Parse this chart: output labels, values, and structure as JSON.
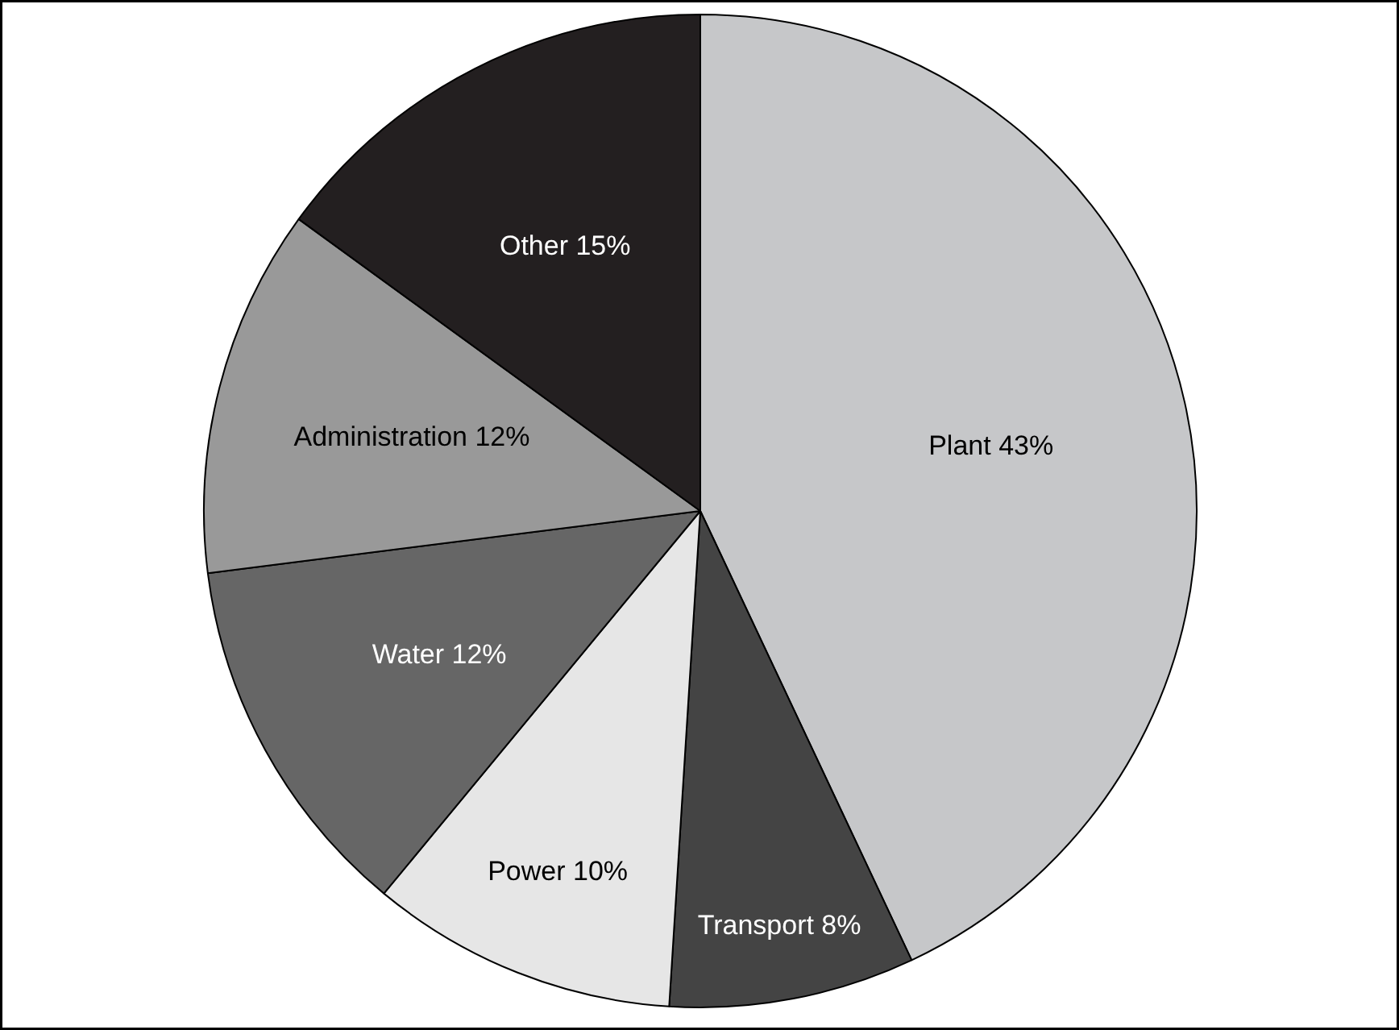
{
  "chart_data": {
    "type": "pie",
    "categories": [
      "Plant",
      "Transport",
      "Power",
      "Water",
      "Administration",
      "Other"
    ],
    "values": [
      43,
      8,
      10,
      12,
      12,
      15
    ],
    "value_labels": [
      "43%",
      "8%",
      "10%",
      "12%",
      "12%",
      "15%"
    ],
    "colors": [
      "#c6c7c9",
      "#444444",
      "#e6e6e6",
      "#666666",
      "#999999",
      "#231f20"
    ]
  }
}
